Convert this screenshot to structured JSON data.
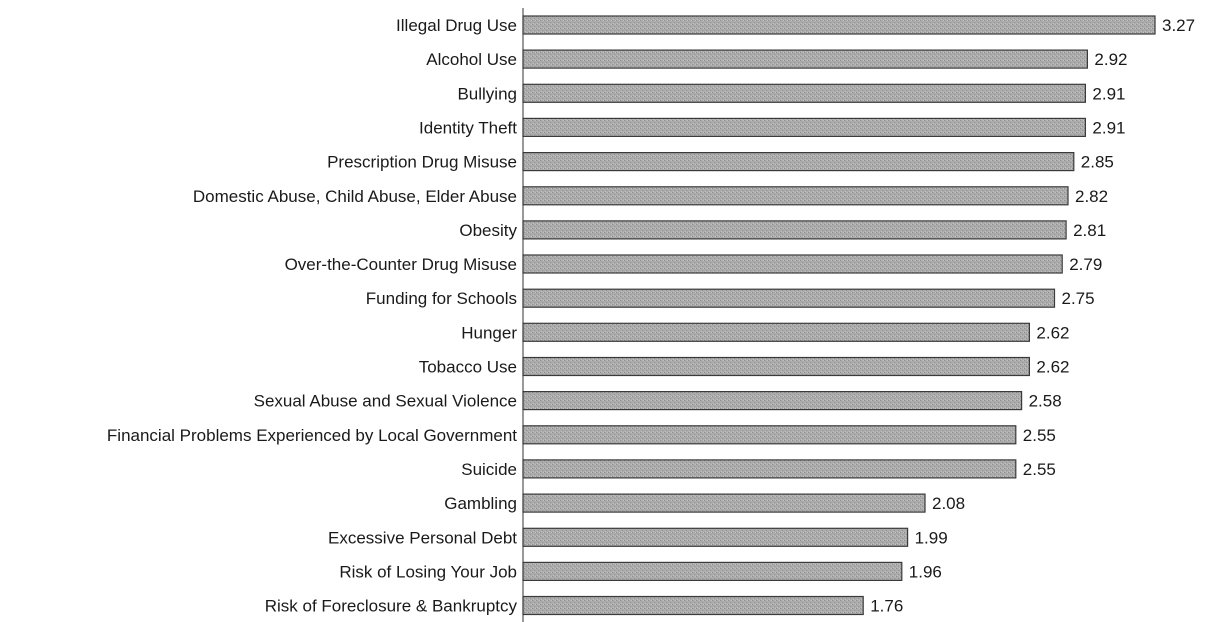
{
  "chart_data": {
    "type": "bar",
    "orientation": "horizontal",
    "title": "",
    "xlabel": "",
    "ylabel": "",
    "xlim": [
      0,
      3.27
    ],
    "grid": false,
    "legend": "none",
    "bar_color": "#a8a8a8",
    "bar_edge_color": "#3a3a3a",
    "categories": [
      "Illegal Drug Use",
      "Alcohol Use",
      "Bullying",
      "Identity Theft",
      "Prescription Drug Misuse",
      "Domestic Abuse, Child Abuse, Elder Abuse",
      "Obesity",
      "Over-the-Counter Drug Misuse",
      "Funding for Schools",
      "Hunger",
      "Tobacco Use",
      "Sexual Abuse and Sexual Violence",
      "Financial Problems Experienced by Local Government",
      "Suicide",
      "Gambling",
      "Excessive Personal Debt",
      "Risk of Losing Your Job",
      "Risk of Foreclosure & Bankruptcy"
    ],
    "values": [
      3.27,
      2.92,
      2.91,
      2.91,
      2.85,
      2.82,
      2.81,
      2.79,
      2.75,
      2.62,
      2.62,
      2.58,
      2.55,
      2.55,
      2.08,
      1.99,
      1.96,
      1.76
    ],
    "value_labels": [
      "3.27",
      "2.92",
      "2.91",
      "2.91",
      "2.85",
      "2.82",
      "2.81",
      "2.79",
      "2.75",
      "2.62",
      "2.62",
      "2.58",
      "2.55",
      "2.55",
      "2.08",
      "1.99",
      "1.96",
      "1.76"
    ]
  }
}
